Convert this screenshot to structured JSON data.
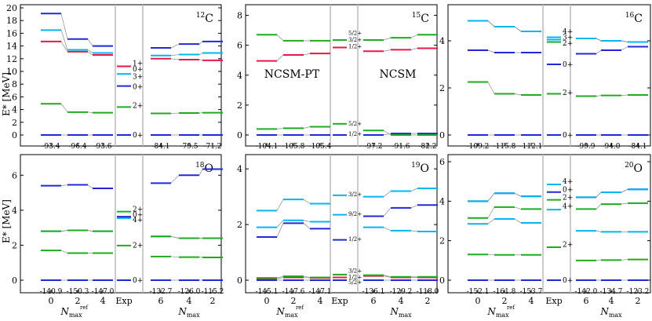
{
  "colors": {
    "zero": "#1f2ad6",
    "one": "#e8174a",
    "two": "#1faa1f",
    "three": "#00b5f0",
    "four": "#00b5f0",
    "connector": "#888888",
    "separator": "#bbbbbb"
  },
  "labels": {
    "ylabel": "E* [MeV]",
    "xlabel_ref": "N",
    "xlabel_ref_sub": "max",
    "xlabel_ref_sup": "ref",
    "xlabel_nmax": "N",
    "xlabel_nmax_sub": "max",
    "exp_label": "Exp",
    "annot_pt": "NCSM-PT",
    "annot_ncsm": "NCSM"
  },
  "chart_data": [
    {
      "type": "level-scheme",
      "nucleus_mass": "12",
      "nucleus_symbol": "C",
      "ylim": [
        -1,
        20
      ],
      "yticks": [
        "0",
        "2",
        "4",
        "6",
        "8",
        "10",
        "12",
        "14",
        "16",
        "18",
        "20"
      ],
      "pt_x": [
        "0",
        "2",
        "4"
      ],
      "ncsm_x": [
        "6",
        "4",
        "2"
      ],
      "pt_gs": [
        "-93.4",
        "-96.4",
        "-93.6"
      ],
      "ncsm_gs": [
        "-84.1",
        "-79.5",
        "-71.2"
      ],
      "levels": [
        {
          "state": "0+",
          "color": "zero",
          "pt": [
            0,
            0,
            0
          ],
          "exp": 0,
          "ncsm": [
            0,
            0,
            0
          ]
        },
        {
          "state": "2+",
          "color": "two",
          "pt": [
            4.9,
            3.6,
            3.5
          ],
          "exp": 4.4,
          "ncsm": [
            3.4,
            3.45,
            3.5
          ]
        },
        {
          "state": "1+",
          "color": "one",
          "pt": [
            14.7,
            13.1,
            12.6
          ],
          "exp": 10.8,
          "ncsm": [
            12.0,
            11.85,
            11.75
          ]
        },
        {
          "state": "3+",
          "color": "three",
          "pt": [
            16.5,
            13.4,
            12.9
          ],
          "exp": 9.6,
          "ncsm": [
            12.5,
            12.65,
            12.9
          ]
        },
        {
          "state": "0+",
          "color": "zero",
          "pt": [
            19.1,
            15.1,
            14.0
          ],
          "exp": 7.7,
          "ncsm": [
            13.7,
            14.3,
            14.7
          ]
        }
      ],
      "exp_labels": [
        {
          "text": "1+",
          "v": 11.3
        },
        {
          "text": "0+",
          "v": 10.4
        },
        {
          "text": "3+",
          "v": 9.2
        },
        {
          "text": "0+",
          "v": 7.6
        },
        {
          "text": "2+",
          "v": 4.6
        },
        {
          "text": "0+",
          "v": 0.0
        }
      ]
    },
    {
      "type": "level-scheme",
      "nucleus_mass": "15",
      "nucleus_symbol": "C",
      "ylim": [
        -0.4,
        8.5
      ],
      "yticks": [
        "0",
        "2",
        "4",
        "6",
        "8"
      ],
      "pt_x": [
        "0",
        "2",
        "4"
      ],
      "ncsm_x": [
        "6",
        "4",
        "2"
      ],
      "pt_gs": [
        "-104.1",
        "-105.8",
        "-105.4"
      ],
      "ncsm_gs": [
        "-97.2",
        "-91.6",
        "-82.2"
      ],
      "levels": [
        {
          "state": "1/2+",
          "color": "zero",
          "pt": [
            0,
            0,
            0
          ],
          "exp": 0,
          "ncsm": [
            0,
            0.1,
            0.1
          ]
        },
        {
          "state": "5/2+",
          "color": "two",
          "pt": [
            0.4,
            0.45,
            0.55
          ],
          "exp": 0.75,
          "ncsm": [
            0.3,
            0.0,
            0.0
          ]
        },
        {
          "state": "1/2+",
          "color": "one",
          "pt": [
            4.95,
            5.35,
            5.45
          ],
          "exp": 5.85,
          "ncsm": [
            5.6,
            5.7,
            5.8
          ]
        },
        {
          "state": "5/2+",
          "color": "two",
          "pt": [
            6.7,
            6.3,
            6.3
          ],
          "exp": 6.35,
          "ncsm": [
            6.35,
            6.5,
            6.7
          ]
        }
      ],
      "exp_labels": [
        {
          "text": "5/2+",
          "v": 6.85
        },
        {
          "text": "3/2+",
          "v": 6.4
        },
        {
          "text": "1/2+",
          "v": 5.95
        },
        {
          "text": "5/2+",
          "v": 0.8
        },
        {
          "text": "1/2+",
          "v": 0.1
        }
      ]
    },
    {
      "type": "level-scheme",
      "nucleus_mass": "16",
      "nucleus_symbol": "C",
      "ylim": [
        -0.2,
        5.4
      ],
      "yticks": [
        "0",
        "2",
        "4"
      ],
      "pt_x": [
        "0",
        "2",
        "4"
      ],
      "ncsm_x": [
        "6",
        "4",
        "2"
      ],
      "pt_gs": [
        "-109.2",
        "-115.8",
        "-112.1"
      ],
      "ncsm_gs": [
        "-99.9",
        "-94.0",
        "-84.1"
      ],
      "levels": [
        {
          "state": "0+",
          "color": "zero",
          "pt": [
            0,
            0,
            0
          ],
          "exp": 0,
          "ncsm": [
            0,
            0,
            0
          ]
        },
        {
          "state": "2+",
          "color": "two",
          "pt": [
            2.25,
            1.75,
            1.7
          ],
          "exp": 1.75,
          "ncsm": [
            1.65,
            1.68,
            1.7
          ]
        },
        {
          "state": "0+",
          "color": "zero",
          "pt": [
            3.6,
            3.5,
            3.5
          ],
          "exp": 3.0,
          "ncsm": [
            3.45,
            3.6,
            3.75
          ]
        },
        {
          "state": "2+",
          "color": "two",
          "pt": [
            4.85,
            4.6,
            4.4
          ],
          "exp": 3.95,
          "ncsm": [
            4.1,
            4.0,
            3.95
          ]
        },
        {
          "state": "3+",
          "color": "three",
          "pt": [
            4.85,
            4.6,
            4.4
          ],
          "exp": 4.05,
          "ncsm": [
            4.1,
            4.0,
            3.95
          ]
        },
        {
          "state": "4+",
          "color": "four",
          "pt": [
            4.85,
            4.6,
            4.4
          ],
          "exp": 4.15,
          "ncsm": [
            4.1,
            4.0,
            3.95
          ]
        }
      ],
      "exp_labels": [
        {
          "text": "4+",
          "v": 4.4
        },
        {
          "text": "3+",
          "v": 4.15
        },
        {
          "text": "2+",
          "v": 3.9
        },
        {
          "text": "0+",
          "v": 3.0
        },
        {
          "text": "2+",
          "v": 1.8
        },
        {
          "text": "0+",
          "v": 0.0
        }
      ]
    },
    {
      "type": "level-scheme",
      "nucleus_mass": "18",
      "nucleus_symbol": "O",
      "ylim": [
        -0.2,
        7.0
      ],
      "yticks": [
        "0",
        "2",
        "4",
        "6"
      ],
      "pt_x": [
        "0",
        "2",
        "4"
      ],
      "ncsm_x": [
        "6",
        "4",
        "2"
      ],
      "pt_gs": [
        "-140.9",
        "-150.3",
        "-147.0"
      ],
      "ncsm_gs": [
        "-132.7",
        "-126.0",
        "-115.2"
      ],
      "levels": [
        {
          "state": "0+",
          "color": "zero",
          "pt": [
            0,
            0,
            0
          ],
          "exp": 0,
          "ncsm": [
            0,
            0,
            0
          ]
        },
        {
          "state": "2+",
          "color": "two",
          "pt": [
            1.7,
            1.55,
            1.55
          ],
          "exp": 1.98,
          "ncsm": [
            1.35,
            1.32,
            1.3
          ]
        },
        {
          "state": "4+",
          "color": "three",
          "pt": [
            2.8,
            2.85,
            2.8
          ],
          "exp": 3.55,
          "ncsm": [
            2.5,
            2.4,
            2.4
          ]
        },
        {
          "state": "0+",
          "color": "zero",
          "pt": [
            5.4,
            5.45,
            5.25
          ],
          "exp": 3.63,
          "ncsm": [
            5.55,
            6.0,
            6.35
          ]
        },
        {
          "state": "2+",
          "color": "two",
          "pt": [
            2.8,
            2.85,
            2.8
          ],
          "exp": 3.92,
          "ncsm": [
            2.5,
            2.4,
            2.4
          ]
        }
      ],
      "exp_labels": [
        {
          "text": "2+",
          "v": 4.05
        },
        {
          "text": "0+",
          "v": 3.75
        },
        {
          "text": "4+",
          "v": 3.45
        },
        {
          "text": "2+",
          "v": 2.0
        },
        {
          "text": "0+",
          "v": 0.0
        }
      ]
    },
    {
      "type": "level-scheme",
      "nucleus_mass": "19",
      "nucleus_symbol": "O",
      "ylim": [
        -0.1,
        4.4
      ],
      "yticks": [
        "0",
        "2",
        "4"
      ],
      "pt_x": [
        "0",
        "2",
        "4"
      ],
      "ncsm_x": [
        "6",
        "4",
        "2"
      ],
      "pt_gs": [
        "-145.1",
        "-147.6",
        "-147.1"
      ],
      "ncsm_gs": [
        "-136.1",
        "-129.2",
        "-118.0"
      ],
      "levels": [
        {
          "state": "5/2+",
          "color": "zero",
          "pt": [
            0,
            0,
            0
          ],
          "exp": 0,
          "ncsm": [
            0,
            0,
            0
          ]
        },
        {
          "state": "3/2+",
          "color": "one",
          "pt": [
            0.05,
            0.1,
            0.08
          ],
          "exp": 0.1,
          "ncsm": [
            0.15,
            0.1,
            0.1
          ]
        },
        {
          "state": "1/2+",
          "color": "two",
          "pt": [
            0.08,
            0.14,
            0.1
          ],
          "exp": 0.2,
          "ncsm": [
            0.18,
            0.12,
            0.12
          ]
        },
        {
          "state": "1/2+",
          "color": "zero",
          "pt": [
            1.55,
            2.05,
            1.85
          ],
          "exp": 1.45,
          "ncsm": [
            2.3,
            2.6,
            2.7
          ]
        },
        {
          "state": "9/2+",
          "color": "three",
          "pt": [
            1.9,
            2.15,
            2.1
          ],
          "exp": 2.35,
          "ncsm": [
            1.9,
            1.78,
            1.75
          ]
        },
        {
          "state": "3/2+",
          "color": "three",
          "pt": [
            2.5,
            2.9,
            2.75
          ],
          "exp": 3.05,
          "ncsm": [
            3.0,
            3.2,
            3.3
          ]
        }
      ],
      "exp_labels": [
        {
          "text": "3/2+",
          "v": 3.1
        },
        {
          "text": "9/2+",
          "v": 2.4
        },
        {
          "text": "1/2+",
          "v": 1.5
        },
        {
          "text": "3/2+",
          "v": 0.35
        },
        {
          "text": "1/2+",
          "v": 0.12
        },
        {
          "text": "5/2+",
          "v": -0.05
        }
      ]
    },
    {
      "type": "level-scheme",
      "nucleus_mass": "20",
      "nucleus_symbol": "O",
      "ylim": [
        -0.2,
        6.2
      ],
      "yticks": [
        "0",
        "2",
        "4",
        "6"
      ],
      "pt_x": [
        "0",
        "2",
        "4"
      ],
      "ncsm_x": [
        "6",
        "4",
        "2"
      ],
      "pt_gs": [
        "-152.1",
        "-161.8",
        "-153.7"
      ],
      "ncsm_gs": [
        "-142.0",
        "-134.7",
        "-123.2"
      ],
      "levels": [
        {
          "state": "0+",
          "color": "zero",
          "pt": [
            0,
            0,
            0
          ],
          "exp": 0,
          "ncsm": [
            0,
            0,
            0
          ]
        },
        {
          "state": "2+",
          "color": "two",
          "pt": [
            1.3,
            1.28,
            1.28
          ],
          "exp": 1.67,
          "ncsm": [
            1.0,
            1.02,
            1.05
          ]
        },
        {
          "state": "4+",
          "color": "three",
          "pt": [
            2.85,
            3.1,
            2.9
          ],
          "exp": 3.57,
          "ncsm": [
            2.5,
            2.45,
            2.45
          ]
        },
        {
          "state": "2+",
          "color": "two",
          "pt": [
            3.15,
            3.7,
            3.6
          ],
          "exp": 4.07,
          "ncsm": [
            3.6,
            3.85,
            3.9
          ]
        },
        {
          "state": "0+",
          "color": "zero",
          "pt": [
            4.0,
            4.4,
            4.25
          ],
          "exp": 4.46,
          "ncsm": [
            4.2,
            4.45,
            4.6
          ]
        },
        {
          "state": "4+",
          "color": "four",
          "pt": [
            4.0,
            4.4,
            4.25
          ],
          "exp": 4.85,
          "ncsm": [
            4.2,
            4.45,
            4.6
          ]
        }
      ],
      "exp_labels": [
        {
          "text": "4+",
          "v": 5.0
        },
        {
          "text": "0+",
          "v": 4.6
        },
        {
          "text": "2+",
          "v": 4.2
        },
        {
          "text": "4+",
          "v": 3.75
        },
        {
          "text": "2+",
          "v": 1.8
        },
        {
          "text": "0+",
          "v": 0.0
        }
      ]
    }
  ]
}
